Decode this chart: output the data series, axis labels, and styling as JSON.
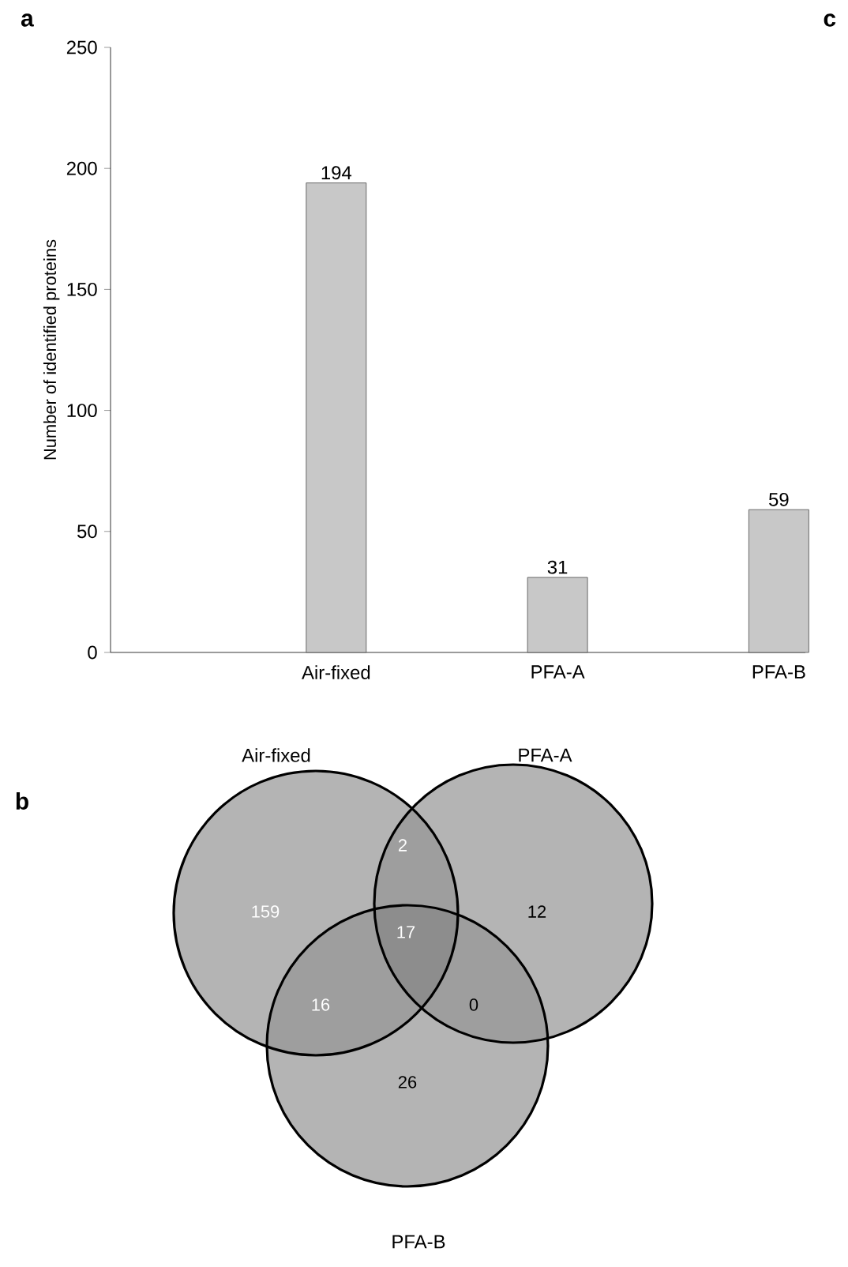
{
  "chart_data": [
    {
      "type": "bar",
      "title": "a",
      "categories": [
        "Air-fixed",
        "PFA-A",
        "PFA-B"
      ],
      "values": [
        194,
        31,
        59
      ],
      "color": "#c8c8c8",
      "ylabel": "Number of identified proteins",
      "ylim": [
        0,
        250
      ],
      "yticks": [
        0,
        50,
        100,
        150,
        200,
        250
      ],
      "data_labels": true,
      "annotations": [
        "c"
      ]
    },
    {
      "type": "other",
      "title": "b",
      "color": "#b4b4b4",
      "annotations": [
        "Air-fixed",
        "PFA-A",
        "PFA-B",
        "159",
        "12",
        "26",
        "2",
        "16",
        "0",
        "17"
      ]
    }
  ]
}
